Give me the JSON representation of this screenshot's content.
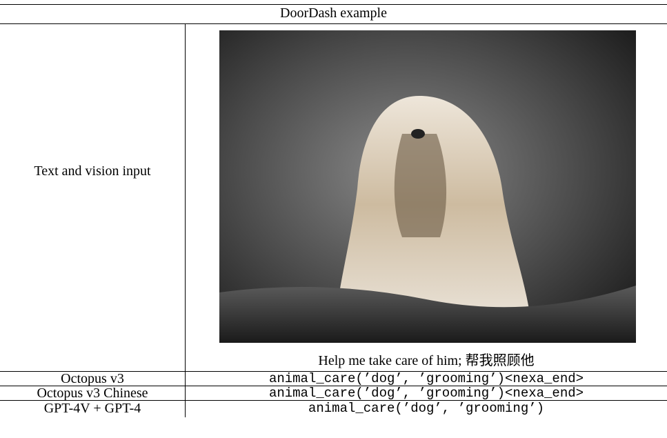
{
  "header": {
    "title": "DoorDash example"
  },
  "table": {
    "rows": [
      {
        "label": "Text and vision input",
        "prompt": "Help me take care of him; 帮我照顾他"
      },
      {
        "label": "Octopus v3",
        "output": "animal_care(’dog’, ’grooming’)<nexa_end>"
      },
      {
        "label": "Octopus v3 Chinese",
        "output": "animal_care(’dog’, ’grooming’)<nexa_end>"
      },
      {
        "label": "GPT-4V + GPT-4",
        "output": "animal_care(’dog’, ’grooming’)"
      }
    ]
  }
}
